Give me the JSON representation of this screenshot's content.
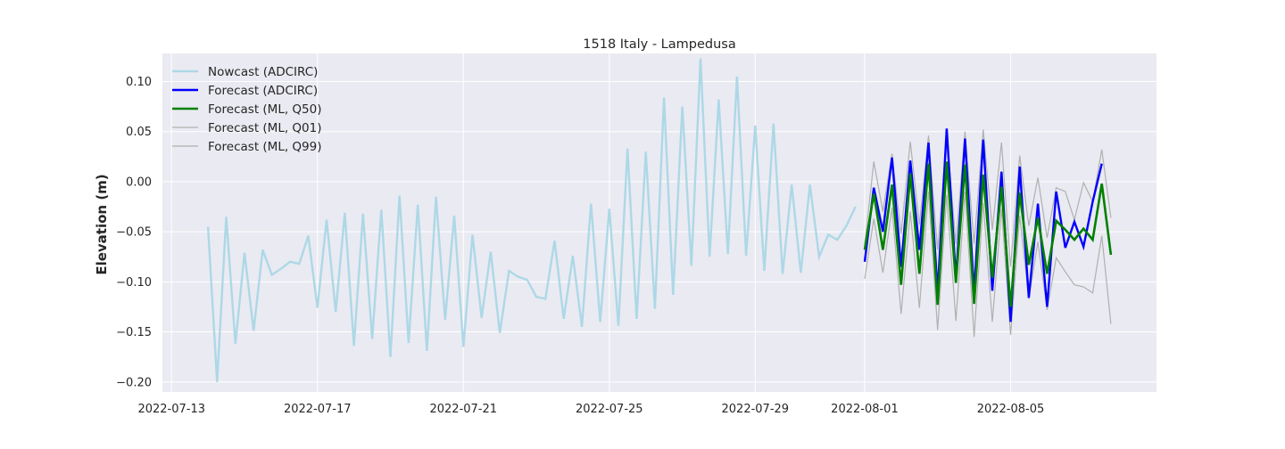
{
  "chart_data": {
    "type": "line",
    "title": "1518 Italy - Lampedusa",
    "xlabel": "",
    "ylabel": "Elevation (m)",
    "ylim": [
      -0.21,
      0.128
    ],
    "xlim": [
      "2022-07-12T18:00",
      "2022-08-09T00:00"
    ],
    "grid": true,
    "legend_position": "top-left",
    "colors": {
      "plot_background": "#eaeaf2",
      "grid": "#ffffff",
      "nowcast": "#add8e6",
      "forecast_adcirc": "#0000ff",
      "forecast_ml_q50": "#008000",
      "forecast_ml_q01": "#b0b0b0",
      "forecast_ml_q99": "#b0b0b0"
    },
    "x_ticks": [
      {
        "date": "2022-07-13",
        "label": "2022-07-13"
      },
      {
        "date": "2022-07-17",
        "label": "2022-07-17"
      },
      {
        "date": "2022-07-21",
        "label": "2022-07-21"
      },
      {
        "date": "2022-07-25",
        "label": "2022-07-25"
      },
      {
        "date": "2022-07-29",
        "label": "2022-07-29"
      },
      {
        "date": "2022-08-01",
        "label": "2022-08-01"
      },
      {
        "date": "2022-08-05",
        "label": "2022-08-05"
      }
    ],
    "y_ticks": [
      {
        "value": 0.1,
        "label": "0.10"
      },
      {
        "value": 0.05,
        "label": "0.05"
      },
      {
        "value": 0.0,
        "label": "0.00"
      },
      {
        "value": -0.05,
        "label": "−0.05"
      },
      {
        "value": -0.1,
        "label": "−0.10"
      },
      {
        "value": -0.15,
        "label": "−0.15"
      },
      {
        "value": -0.2,
        "label": "−0.20"
      }
    ],
    "series": [
      {
        "name": "Nowcast (ADCIRC)",
        "color": "#add8e6",
        "data": [
          [
            "2022-07-14T00:00",
            -0.045
          ],
          [
            "2022-07-14T06:00",
            -0.2
          ],
          [
            "2022-07-14T12:00",
            -0.035
          ],
          [
            "2022-07-14T18:00",
            -0.162
          ],
          [
            "2022-07-15T00:00",
            -0.071
          ],
          [
            "2022-07-15T06:00",
            -0.149
          ],
          [
            "2022-07-15T12:00",
            -0.068
          ],
          [
            "2022-07-15T18:00",
            -0.093
          ],
          [
            "2022-07-16T00:00",
            -0.087
          ],
          [
            "2022-07-16T06:00",
            -0.08
          ],
          [
            "2022-07-16T12:00",
            -0.082
          ],
          [
            "2022-07-16T18:00",
            -0.054
          ],
          [
            "2022-07-17T00:00",
            -0.126
          ],
          [
            "2022-07-17T06:00",
            -0.038
          ],
          [
            "2022-07-17T12:00",
            -0.13
          ],
          [
            "2022-07-17T18:00",
            -0.031
          ],
          [
            "2022-07-18T00:00",
            -0.164
          ],
          [
            "2022-07-18T06:00",
            -0.032
          ],
          [
            "2022-07-18T12:00",
            -0.157
          ],
          [
            "2022-07-18T18:00",
            -0.028
          ],
          [
            "2022-07-19T00:00",
            -0.175
          ],
          [
            "2022-07-19T06:00",
            -0.014
          ],
          [
            "2022-07-19T12:00",
            -0.161
          ],
          [
            "2022-07-19T18:00",
            -0.023
          ],
          [
            "2022-07-20T00:00",
            -0.169
          ],
          [
            "2022-07-20T06:00",
            -0.015
          ],
          [
            "2022-07-20T12:00",
            -0.138
          ],
          [
            "2022-07-20T18:00",
            -0.034
          ],
          [
            "2022-07-21T00:00",
            -0.165
          ],
          [
            "2022-07-21T06:00",
            -0.053
          ],
          [
            "2022-07-21T12:00",
            -0.136
          ],
          [
            "2022-07-21T18:00",
            -0.07
          ],
          [
            "2022-07-22T00:00",
            -0.151
          ],
          [
            "2022-07-22T06:00",
            -0.089
          ],
          [
            "2022-07-22T12:00",
            -0.095
          ],
          [
            "2022-07-22T18:00",
            -0.098
          ],
          [
            "2022-07-23T00:00",
            -0.115
          ],
          [
            "2022-07-23T06:00",
            -0.117
          ],
          [
            "2022-07-23T12:00",
            -0.059
          ],
          [
            "2022-07-23T18:00",
            -0.137
          ],
          [
            "2022-07-24T00:00",
            -0.074
          ],
          [
            "2022-07-24T06:00",
            -0.145
          ],
          [
            "2022-07-24T12:00",
            -0.022
          ],
          [
            "2022-07-24T18:00",
            -0.14
          ],
          [
            "2022-07-25T00:00",
            -0.027
          ],
          [
            "2022-07-25T06:00",
            -0.144
          ],
          [
            "2022-07-25T12:00",
            0.033
          ],
          [
            "2022-07-25T18:00",
            -0.137
          ],
          [
            "2022-07-26T00:00",
            0.03
          ],
          [
            "2022-07-26T06:00",
            -0.127
          ],
          [
            "2022-07-26T12:00",
            0.084
          ],
          [
            "2022-07-26T18:00",
            -0.113
          ],
          [
            "2022-07-27T00:00",
            0.075
          ],
          [
            "2022-07-27T06:00",
            -0.084
          ],
          [
            "2022-07-27T12:00",
            0.123
          ],
          [
            "2022-07-27T18:00",
            -0.075
          ],
          [
            "2022-07-28T00:00",
            0.082
          ],
          [
            "2022-07-28T06:00",
            -0.072
          ],
          [
            "2022-07-28T12:00",
            0.105
          ],
          [
            "2022-07-28T18:00",
            -0.074
          ],
          [
            "2022-07-29T00:00",
            0.056
          ],
          [
            "2022-07-29T06:00",
            -0.089
          ],
          [
            "2022-07-29T12:00",
            0.058
          ],
          [
            "2022-07-29T18:00",
            -0.092
          ],
          [
            "2022-07-30T00:00",
            -0.003
          ],
          [
            "2022-07-30T06:00",
            -0.091
          ],
          [
            "2022-07-30T12:00",
            -0.003
          ],
          [
            "2022-07-30T18:00",
            -0.075
          ],
          [
            "2022-07-31T00:00",
            -0.053
          ],
          [
            "2022-07-31T06:00",
            -0.058
          ],
          [
            "2022-07-31T12:00",
            -0.044
          ],
          [
            "2022-07-31T18:00",
            -0.025
          ]
        ]
      },
      {
        "name": "Forecast (ADCIRC)",
        "color": "#0000ff",
        "data": [
          [
            "2022-08-01T00:00",
            -0.08
          ],
          [
            "2022-08-01T06:00",
            -0.006
          ],
          [
            "2022-08-01T12:00",
            -0.05
          ],
          [
            "2022-08-01T18:00",
            0.024
          ],
          [
            "2022-08-02T00:00",
            -0.085
          ],
          [
            "2022-08-02T06:00",
            0.021
          ],
          [
            "2022-08-02T12:00",
            -0.068
          ],
          [
            "2022-08-02T18:00",
            0.039
          ],
          [
            "2022-08-03T00:00",
            -0.111
          ],
          [
            "2022-08-03T06:00",
            0.053
          ],
          [
            "2022-08-03T12:00",
            -0.097
          ],
          [
            "2022-08-03T18:00",
            0.043
          ],
          [
            "2022-08-04T00:00",
            -0.111
          ],
          [
            "2022-08-04T06:00",
            0.042
          ],
          [
            "2022-08-04T12:00",
            -0.109
          ],
          [
            "2022-08-04T18:00",
            0.01
          ],
          [
            "2022-08-05T00:00",
            -0.14
          ],
          [
            "2022-08-05T06:00",
            0.015
          ],
          [
            "2022-08-05T12:00",
            -0.116
          ],
          [
            "2022-08-05T18:00",
            -0.022
          ],
          [
            "2022-08-06T00:00",
            -0.125
          ],
          [
            "2022-08-06T06:00",
            -0.01
          ],
          [
            "2022-08-06T12:00",
            -0.066
          ],
          [
            "2022-08-06T18:00",
            -0.04
          ],
          [
            "2022-08-07T00:00",
            -0.065
          ],
          [
            "2022-08-07T06:00",
            -0.02
          ],
          [
            "2022-08-07T12:00",
            0.018
          ]
        ]
      },
      {
        "name": "Forecast (ML, Q50)",
        "color": "#008000",
        "data": [
          [
            "2022-08-01T00:00",
            -0.068
          ],
          [
            "2022-08-01T06:00",
            -0.012
          ],
          [
            "2022-08-01T12:00",
            -0.068
          ],
          [
            "2022-08-01T18:00",
            -0.003
          ],
          [
            "2022-08-02T00:00",
            -0.103
          ],
          [
            "2022-08-02T06:00",
            0.008
          ],
          [
            "2022-08-02T12:00",
            -0.092
          ],
          [
            "2022-08-02T18:00",
            0.018
          ],
          [
            "2022-08-03T00:00",
            -0.123
          ],
          [
            "2022-08-03T06:00",
            0.02
          ],
          [
            "2022-08-03T12:00",
            -0.101
          ],
          [
            "2022-08-03T18:00",
            0.017
          ],
          [
            "2022-08-04T00:00",
            -0.122
          ],
          [
            "2022-08-04T06:00",
            0.007
          ],
          [
            "2022-08-04T12:00",
            -0.096
          ],
          [
            "2022-08-04T18:00",
            -0.005
          ],
          [
            "2022-08-05T00:00",
            -0.125
          ],
          [
            "2022-08-05T06:00",
            -0.011
          ],
          [
            "2022-08-05T12:00",
            -0.083
          ],
          [
            "2022-08-05T18:00",
            -0.036
          ],
          [
            "2022-08-06T00:00",
            -0.092
          ],
          [
            "2022-08-06T06:00",
            -0.039
          ],
          [
            "2022-08-06T12:00",
            -0.048
          ],
          [
            "2022-08-06T18:00",
            -0.058
          ],
          [
            "2022-08-07T00:00",
            -0.047
          ],
          [
            "2022-08-07T06:00",
            -0.058
          ],
          [
            "2022-08-07T12:00",
            -0.002
          ],
          [
            "2022-08-07T18:00",
            -0.073
          ]
        ]
      },
      {
        "name": "Forecast (ML, Q01)",
        "color": "#b0b0b0",
        "data": [
          [
            "2022-08-01T00:00",
            -0.097
          ],
          [
            "2022-08-01T06:00",
            -0.037
          ],
          [
            "2022-08-01T12:00",
            -0.091
          ],
          [
            "2022-08-01T18:00",
            -0.026
          ],
          [
            "2022-08-02T00:00",
            -0.132
          ],
          [
            "2022-08-02T06:00",
            -0.03
          ],
          [
            "2022-08-02T12:00",
            -0.126
          ],
          [
            "2022-08-02T18:00",
            -0.01
          ],
          [
            "2022-08-03T00:00",
            -0.148
          ],
          [
            "2022-08-03T06:00",
            -0.013
          ],
          [
            "2022-08-03T12:00",
            -0.139
          ],
          [
            "2022-08-03T18:00",
            -0.01
          ],
          [
            "2022-08-04T00:00",
            -0.155
          ],
          [
            "2022-08-04T06:00",
            -0.021
          ],
          [
            "2022-08-04T12:00",
            -0.14
          ],
          [
            "2022-08-04T18:00",
            -0.027
          ],
          [
            "2022-08-05T00:00",
            -0.153
          ],
          [
            "2022-08-05T06:00",
            -0.034
          ],
          [
            "2022-08-05T12:00",
            -0.117
          ],
          [
            "2022-08-05T18:00",
            -0.06
          ],
          [
            "2022-08-06T00:00",
            -0.128
          ],
          [
            "2022-08-06T06:00",
            -0.076
          ],
          [
            "2022-08-06T12:00",
            -0.09
          ],
          [
            "2022-08-06T18:00",
            -0.103
          ],
          [
            "2022-08-07T00:00",
            -0.105
          ],
          [
            "2022-08-07T06:00",
            -0.111
          ],
          [
            "2022-08-07T12:00",
            -0.054
          ],
          [
            "2022-08-07T18:00",
            -0.142
          ]
        ]
      },
      {
        "name": "Forecast (ML, Q99)",
        "color": "#b0b0b0",
        "data": [
          [
            "2022-08-01T00:00",
            -0.063
          ],
          [
            "2022-08-01T06:00",
            0.02
          ],
          [
            "2022-08-01T12:00",
            -0.03
          ],
          [
            "2022-08-01T18:00",
            0.028
          ],
          [
            "2022-08-02T00:00",
            -0.052
          ],
          [
            "2022-08-02T06:00",
            0.04
          ],
          [
            "2022-08-02T12:00",
            -0.043
          ],
          [
            "2022-08-02T18:00",
            0.046
          ],
          [
            "2022-08-03T00:00",
            -0.068
          ],
          [
            "2022-08-03T06:00",
            0.047
          ],
          [
            "2022-08-03T12:00",
            -0.062
          ],
          [
            "2022-08-03T18:00",
            0.05
          ],
          [
            "2022-08-04T00:00",
            -0.062
          ],
          [
            "2022-08-04T06:00",
            0.052
          ],
          [
            "2022-08-04T12:00",
            -0.048
          ],
          [
            "2022-08-04T18:00",
            0.039
          ],
          [
            "2022-08-05T00:00",
            -0.085
          ],
          [
            "2022-08-05T06:00",
            0.026
          ],
          [
            "2022-08-05T12:00",
            -0.044
          ],
          [
            "2022-08-05T18:00",
            0.004
          ],
          [
            "2022-08-06T00:00",
            -0.056
          ],
          [
            "2022-08-06T06:00",
            -0.006
          ],
          [
            "2022-08-06T12:00",
            -0.01
          ],
          [
            "2022-08-06T18:00",
            -0.038
          ],
          [
            "2022-08-07T00:00",
            -0.001
          ],
          [
            "2022-08-07T06:00",
            -0.02
          ],
          [
            "2022-08-07T12:00",
            0.032
          ],
          [
            "2022-08-07T18:00",
            -0.036
          ]
        ]
      }
    ]
  }
}
